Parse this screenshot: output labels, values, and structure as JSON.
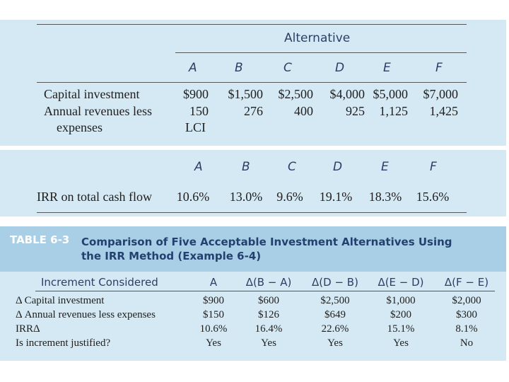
{
  "panel1": {
    "header": "Alternative",
    "columns": [
      "A",
      "B",
      "C",
      "D",
      "E",
      "F"
    ],
    "rows": [
      {
        "label": "Capital investment",
        "values": [
          "$900",
          "$1,500",
          "$2,500",
          "$4,000",
          "$5,000",
          "$7,000"
        ]
      },
      {
        "label": "Annual revenues less",
        "values": [
          "150",
          "276",
          "400",
          "925",
          "1,125",
          "1,425"
        ]
      },
      {
        "label": "expenses",
        "values": [
          "LCI"
        ]
      }
    ]
  },
  "panel2": {
    "columns": [
      "A",
      "B",
      "C",
      "D",
      "E",
      "F"
    ],
    "rows": [
      {
        "label": "IRR on total cash flow",
        "values": [
          "10.6%",
          "13.0%",
          "9.6%",
          "19.1%",
          "18.3%",
          "15.6%"
        ]
      }
    ]
  },
  "table": {
    "number": "TABLE 6-3",
    "title": "Comparison of Five Acceptable Investment Alternatives Using the IRR Method (Example 6-4)",
    "header": [
      "Increment Considered",
      "A",
      "Δ(B − A)",
      "Δ(D − B)",
      "Δ(E − D)",
      "Δ(F − E)"
    ],
    "rows": [
      [
        "Δ Capital investment",
        "$900",
        "$600",
        "$2,500",
        "$1,000",
        "$2,000"
      ],
      [
        "Δ Annual revenues less expenses",
        "$150",
        "$126",
        "$649",
        "$200",
        "$300"
      ],
      [
        "IRRΔ",
        "10.6%",
        "16.4%",
        "22.6%",
        "15.1%",
        "8.1%"
      ],
      [
        "Is increment justified?",
        "Yes",
        "Yes",
        "Yes",
        "Yes",
        "No"
      ]
    ]
  }
}
